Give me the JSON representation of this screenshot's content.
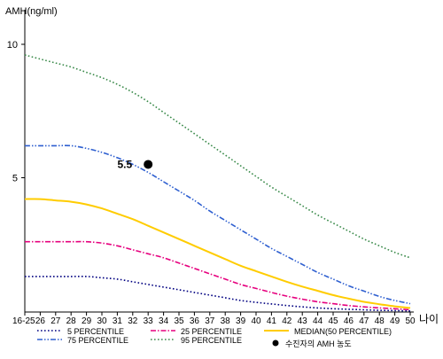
{
  "chart_data": {
    "type": "line",
    "ylabel": "AMH(ng/ml)",
    "xlabel": "나이",
    "x": [
      "16-25",
      "26",
      "27",
      "28",
      "29",
      "30",
      "31",
      "32",
      "33",
      "34",
      "35",
      "36",
      "37",
      "38",
      "39",
      "40",
      "41",
      "42",
      "43",
      "44",
      "45",
      "46",
      "47",
      "48",
      "49",
      "50"
    ],
    "yticks": [
      5,
      10
    ],
    "ylim": [
      0,
      11
    ],
    "grid": false,
    "legend_position": "bottom",
    "series": [
      {
        "name": "5 PERCENTILE",
        "color": "#000080",
        "style": "dotted",
        "values": [
          1.3,
          1.3,
          1.3,
          1.3,
          1.3,
          1.25,
          1.2,
          1.1,
          1.0,
          0.9,
          0.8,
          0.7,
          0.6,
          0.5,
          0.4,
          0.33,
          0.27,
          0.21,
          0.16,
          0.12,
          0.09,
          0.07,
          0.05,
          0.03,
          0.02,
          0.01
        ]
      },
      {
        "name": "25 PERCENTILE",
        "color": "#e6007e",
        "style": "dashdot",
        "values": [
          2.6,
          2.6,
          2.6,
          2.6,
          2.6,
          2.55,
          2.45,
          2.3,
          2.15,
          2.0,
          1.8,
          1.6,
          1.4,
          1.2,
          1.0,
          0.85,
          0.7,
          0.56,
          0.45,
          0.35,
          0.28,
          0.21,
          0.16,
          0.12,
          0.09,
          0.05
        ]
      },
      {
        "name": "MEDIAN(50 PERCENTILE)",
        "color": "#ffcc00",
        "style": "solid",
        "values": [
          4.2,
          4.2,
          4.15,
          4.1,
          4.0,
          3.85,
          3.65,
          3.45,
          3.2,
          2.95,
          2.7,
          2.45,
          2.2,
          1.95,
          1.7,
          1.5,
          1.3,
          1.1,
          0.92,
          0.76,
          0.6,
          0.47,
          0.35,
          0.26,
          0.18,
          0.12
        ]
      },
      {
        "name": "75 PERCENTILE",
        "color": "#2e5fd0",
        "style": "dashdotdot",
        "values": [
          6.2,
          6.2,
          6.2,
          6.2,
          6.1,
          5.95,
          5.75,
          5.5,
          5.2,
          4.85,
          4.5,
          4.15,
          3.75,
          3.4,
          3.05,
          2.7,
          2.35,
          2.05,
          1.75,
          1.45,
          1.2,
          0.95,
          0.75,
          0.55,
          0.4,
          0.28
        ]
      },
      {
        "name": "95 PERCENTILE",
        "color": "#3a8a4a",
        "style": "dotted",
        "values": [
          9.6,
          9.45,
          9.3,
          9.15,
          8.95,
          8.75,
          8.5,
          8.2,
          7.85,
          7.45,
          7.05,
          6.65,
          6.25,
          5.85,
          5.45,
          5.05,
          4.65,
          4.3,
          3.95,
          3.6,
          3.3,
          3.0,
          2.7,
          2.45,
          2.2,
          2.0
        ]
      }
    ],
    "annotation": {
      "label": "5.5",
      "x": "33",
      "y": 5.5,
      "legend_name": "수진자의 AMH 농도"
    }
  }
}
